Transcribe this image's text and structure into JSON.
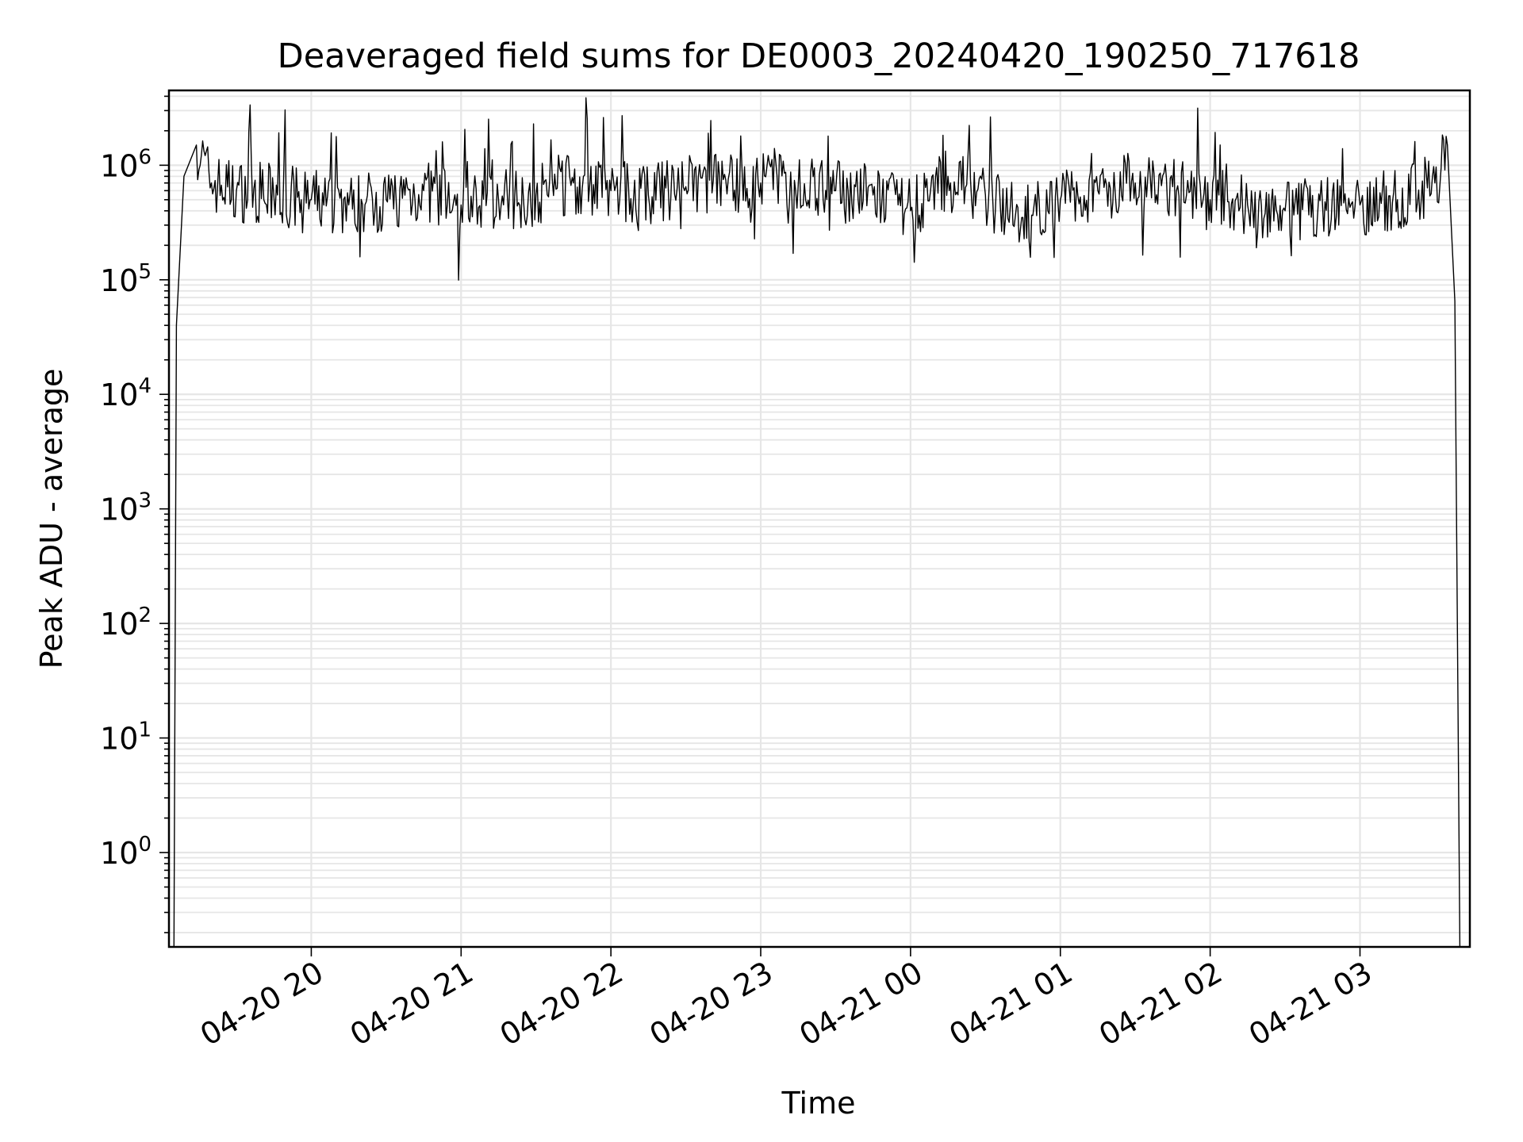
{
  "chart_data": {
    "type": "line",
    "title": "Deaveraged field sums for DE0003_20240420_190250_717618",
    "xlabel": "Time",
    "ylabel": "Peak ADU - average",
    "yscale": "log",
    "ylim": [
      0.15,
      4500000
    ],
    "xlim": [
      "2024-04-20 19:03",
      "2024-04-21 03:44"
    ],
    "x_ticks": [
      "04-20 20",
      "04-20 21",
      "04-20 22",
      "04-20 23",
      "04-21 00",
      "04-21 01",
      "04-21 02",
      "04-21 03"
    ],
    "y_ticks": [
      {
        "base": "10",
        "exp": "0",
        "value": 1
      },
      {
        "base": "10",
        "exp": "1",
        "value": 10
      },
      {
        "base": "10",
        "exp": "2",
        "value": 100
      },
      {
        "base": "10",
        "exp": "3",
        "value": 1000
      },
      {
        "base": "10",
        "exp": "4",
        "value": 10000
      },
      {
        "base": "10",
        "exp": "5",
        "value": 100000
      },
      {
        "base": "10",
        "exp": "6",
        "value": 1000000
      }
    ],
    "grid": true,
    "legend": "none",
    "line_color": "#000000",
    "series": [
      {
        "x": [
          "2024-04-20 19:05",
          "2024-04-20 19:06",
          "2024-04-20 19:09",
          "2024-04-20 19:14",
          "2024-04-20 19:20",
          "2024-04-20 19:30",
          "2024-04-20 19:45",
          "2024-04-20 20:00",
          "2024-04-20 20:15",
          "2024-04-20 20:30",
          "2024-04-20 20:45",
          "2024-04-20 21:00",
          "2024-04-20 21:15",
          "2024-04-20 21:30",
          "2024-04-20 21:45",
          "2024-04-20 22:00",
          "2024-04-20 22:15",
          "2024-04-20 22:30",
          "2024-04-20 22:45",
          "2024-04-20 23:00",
          "2024-04-20 23:15",
          "2024-04-20 23:30",
          "2024-04-20 23:45",
          "2024-04-21 00:00",
          "2024-04-21 00:15",
          "2024-04-21 00:30",
          "2024-04-21 00:45",
          "2024-04-21 01:00",
          "2024-04-21 01:15",
          "2024-04-21 01:30",
          "2024-04-21 01:45",
          "2024-04-21 02:00",
          "2024-04-21 02:15",
          "2024-04-21 02:30",
          "2024-04-21 02:45",
          "2024-04-21 03:00",
          "2024-04-21 03:15",
          "2024-04-21 03:30",
          "2024-04-21 03:35",
          "2024-04-21 03:38",
          "2024-04-21 03:40"
        ],
        "values": [
          0.15,
          40000,
          800000,
          1500000,
          700000,
          600000,
          550000,
          500000,
          450000,
          500000,
          600000,
          450000,
          500000,
          550000,
          700000,
          600000,
          550000,
          650000,
          750000,
          700000,
          650000,
          600000,
          550000,
          400000,
          800000,
          550000,
          350000,
          500000,
          600000,
          700000,
          650000,
          500000,
          450000,
          400000,
          450000,
          450000,
          500000,
          700000,
          1500000,
          65000,
          0.15
        ]
      }
    ]
  }
}
